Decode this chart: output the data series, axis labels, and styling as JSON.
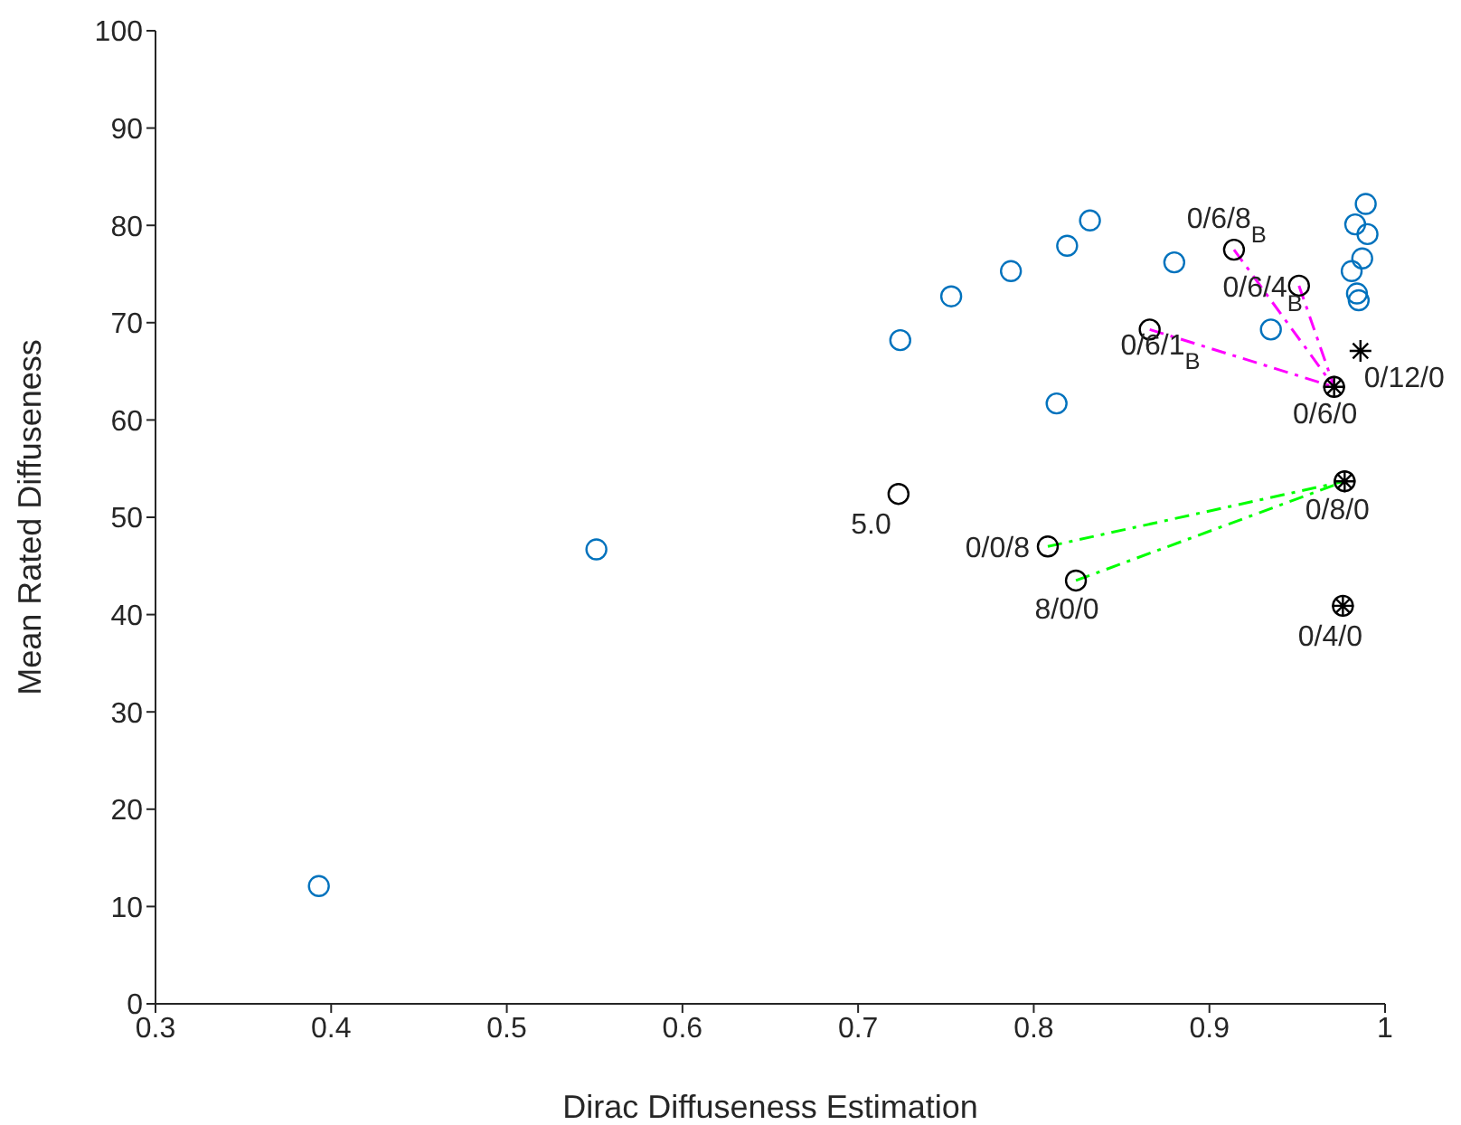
{
  "chart_data": {
    "type": "scatter",
    "xlabel": "Dirac Diffuseness Estimation",
    "ylabel": "Mean Rated Diffuseness",
    "xlim": [
      0.3,
      1
    ],
    "xticks": [
      0.3,
      0.4,
      0.5,
      0.6,
      0.7,
      0.8,
      0.9,
      1
    ],
    "ylim": [
      0,
      100
    ],
    "yticks": [
      0,
      10,
      20,
      30,
      40,
      50,
      60,
      70,
      80,
      90,
      100
    ],
    "grid": false,
    "legend": false,
    "series": [
      {
        "type": "line",
        "color": "#ff00ff",
        "line_style": "dashed",
        "x": [
          0.914,
          0.971
        ],
        "values": [
          77.5,
          63.4
        ]
      },
      {
        "type": "line",
        "color": "#ff00ff",
        "line_style": "dashed",
        "x": [
          0.951,
          0.971
        ],
        "values": [
          73.8,
          63.4
        ]
      },
      {
        "type": "line",
        "color": "#ff00ff",
        "line_style": "dashed",
        "x": [
          0.866,
          0.971
        ],
        "values": [
          69.3,
          63.4
        ]
      },
      {
        "type": "line",
        "color": "#00ff00",
        "line_style": "dashed",
        "x": [
          0.808,
          0.977
        ],
        "values": [
          47.0,
          53.7
        ]
      },
      {
        "type": "line",
        "color": "#00ff00",
        "line_style": "dashed",
        "x": [
          0.824,
          0.977
        ],
        "values": [
          43.5,
          53.7
        ]
      },
      {
        "color": "#0072bd",
        "marker": "circle",
        "x": [
          0.393,
          0.551,
          0.724,
          0.753,
          0.787,
          0.819,
          0.832,
          0.813,
          0.88,
          0.935,
          0.989,
          0.983,
          0.99,
          0.987,
          0.981,
          0.984,
          0.985
        ],
        "values": [
          12.1,
          46.7,
          68.2,
          72.7,
          75.3,
          77.9,
          80.5,
          61.7,
          76.2,
          69.3,
          82.2,
          80.1,
          79.1,
          76.6,
          75.3,
          73.0,
          72.3
        ]
      },
      {
        "color": "#000000",
        "marker": "circle",
        "x": [
          0.914,
          0.951,
          0.866,
          0.971,
          0.723,
          0.808,
          0.824,
          0.977,
          0.976
        ],
        "values": [
          77.5,
          73.8,
          69.3,
          63.4,
          52.4,
          47.0,
          43.5,
          53.7,
          40.9
        ]
      },
      {
        "color": "#000000",
        "marker": "cross",
        "x": [
          0.971,
          0.986,
          0.977,
          0.976
        ],
        "values": [
          63.4,
          67.1,
          53.7,
          40.9
        ]
      }
    ],
    "annotations": [
      {
        "text": "0/6/8$_{B}$",
        "x": 0.914,
        "y": 77.5
      },
      {
        "text": "0/6/4$_{B}$",
        "x": 0.951,
        "y": 73.8
      },
      {
        "text": "0/6/1$_{B}$",
        "x": 0.866,
        "y": 69.3
      },
      {
        "text": "0/6/0",
        "x": 0.971,
        "y": 63.4
      },
      {
        "text": "0/12/0",
        "x": 0.986,
        "y": 67.1
      },
      {
        "text": "5.0",
        "x": 0.723,
        "y": 52.4
      },
      {
        "text": "0/0/8",
        "x": 0.808,
        "y": 47.0
      },
      {
        "text": "8/0/0",
        "x": 0.824,
        "y": 43.5
      },
      {
        "text": "0/8/0",
        "x": 0.977,
        "y": 53.7
      },
      {
        "text": "0/4/0",
        "x": 0.976,
        "y": 40.9
      }
    ]
  }
}
